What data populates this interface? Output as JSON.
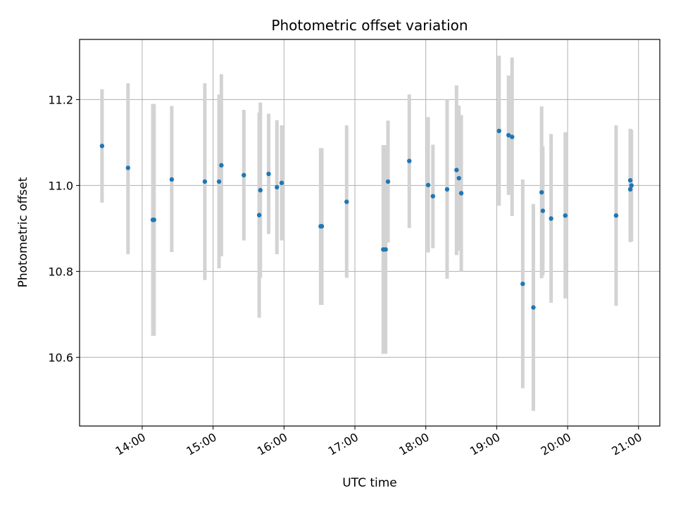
{
  "chart_data": {
    "type": "scatter",
    "title": "Photometric offset variation",
    "xlabel": "UTC time",
    "ylabel": "Photometric offset",
    "x_ticks": [
      "14:00",
      "15:00",
      "16:00",
      "17:00",
      "18:00",
      "19:00",
      "20:00",
      "21:00"
    ],
    "y_ticks": [
      "10.6",
      "10.8",
      "11.0",
      "11.2"
    ],
    "xlim": [
      "13:07",
      "21:18"
    ],
    "ylim": [
      10.44,
      11.34
    ],
    "grid": true,
    "colors": {
      "points": "#1f77b4",
      "errorbars": "#d3d3d3",
      "grid": "#b0b0b0"
    },
    "points": [
      {
        "x": "13:26",
        "y": 11.092,
        "ylo": 10.96,
        "yhi": 11.224
      },
      {
        "x": "13:48",
        "y": 11.041,
        "ylo": 10.84,
        "yhi": 11.238
      },
      {
        "x": "14:09",
        "y": 10.92,
        "ylo": 10.65,
        "yhi": 11.19
      },
      {
        "x": "14:10",
        "y": 10.92,
        "ylo": 10.65,
        "yhi": 11.19
      },
      {
        "x": "14:25",
        "y": 11.014,
        "ylo": 10.845,
        "yhi": 11.185
      },
      {
        "x": "14:53",
        "y": 11.009,
        "ylo": 10.78,
        "yhi": 11.238
      },
      {
        "x": "15:05",
        "y": 11.009,
        "ylo": 10.807,
        "yhi": 11.212
      },
      {
        "x": "15:07",
        "y": 11.047,
        "ylo": 10.835,
        "yhi": 11.259
      },
      {
        "x": "15:26",
        "y": 11.024,
        "ylo": 10.872,
        "yhi": 11.176
      },
      {
        "x": "15:39",
        "y": 10.931,
        "ylo": 10.692,
        "yhi": 11.17
      },
      {
        "x": "15:40",
        "y": 10.989,
        "ylo": 10.785,
        "yhi": 11.193
      },
      {
        "x": "15:47",
        "y": 11.027,
        "ylo": 10.887,
        "yhi": 11.167
      },
      {
        "x": "15:54",
        "y": 10.996,
        "ylo": 10.84,
        "yhi": 11.152
      },
      {
        "x": "15:58",
        "y": 11.006,
        "ylo": 10.872,
        "yhi": 11.14
      },
      {
        "x": "16:31",
        "y": 10.905,
        "ylo": 10.722,
        "yhi": 11.087
      },
      {
        "x": "16:32",
        "y": 10.905,
        "ylo": 10.722,
        "yhi": 11.087
      },
      {
        "x": "16:53",
        "y": 10.962,
        "ylo": 10.785,
        "yhi": 11.14
      },
      {
        "x": "17:24",
        "y": 10.851,
        "ylo": 10.608,
        "yhi": 11.094
      },
      {
        "x": "17:26",
        "y": 10.851,
        "ylo": 10.608,
        "yhi": 11.094
      },
      {
        "x": "17:28",
        "y": 11.009,
        "ylo": 10.867,
        "yhi": 11.151
      },
      {
        "x": "17:46",
        "y": 11.057,
        "ylo": 10.901,
        "yhi": 11.212
      },
      {
        "x": "18:02",
        "y": 11.001,
        "ylo": 10.844,
        "yhi": 11.159
      },
      {
        "x": "18:06",
        "y": 10.975,
        "ylo": 10.854,
        "yhi": 11.095
      },
      {
        "x": "18:18",
        "y": 10.991,
        "ylo": 10.783,
        "yhi": 11.2
      },
      {
        "x": "18:26",
        "y": 11.036,
        "ylo": 10.838,
        "yhi": 11.233
      },
      {
        "x": "18:28",
        "y": 11.017,
        "ylo": 10.848,
        "yhi": 11.186
      },
      {
        "x": "18:30",
        "y": 10.982,
        "ylo": 10.8,
        "yhi": 11.164
      },
      {
        "x": "19:02",
        "y": 11.127,
        "ylo": 10.953,
        "yhi": 11.302
      },
      {
        "x": "19:10",
        "y": 11.117,
        "ylo": 10.978,
        "yhi": 11.256
      },
      {
        "x": "19:13",
        "y": 11.113,
        "ylo": 10.929,
        "yhi": 11.298
      },
      {
        "x": "19:22",
        "y": 10.771,
        "ylo": 10.528,
        "yhi": 11.014
      },
      {
        "x": "19:31",
        "y": 10.716,
        "ylo": 10.475,
        "yhi": 10.957
      },
      {
        "x": "19:38",
        "y": 10.984,
        "ylo": 10.784,
        "yhi": 11.184
      },
      {
        "x": "19:39",
        "y": 10.941,
        "ylo": 10.791,
        "yhi": 11.091
      },
      {
        "x": "19:46",
        "y": 10.923,
        "ylo": 10.727,
        "yhi": 11.12
      },
      {
        "x": "19:58",
        "y": 10.93,
        "ylo": 10.737,
        "yhi": 11.124
      },
      {
        "x": "20:41",
        "y": 10.93,
        "ylo": 10.72,
        "yhi": 11.14
      },
      {
        "x": "20:53",
        "y": 11.012,
        "ylo": 10.892,
        "yhi": 11.132
      },
      {
        "x": "20:53",
        "y": 10.991,
        "ylo": 10.868,
        "yhi": 11.114
      },
      {
        "x": "20:54",
        "y": 11.0,
        "ylo": 10.87,
        "yhi": 11.13
      }
    ]
  }
}
